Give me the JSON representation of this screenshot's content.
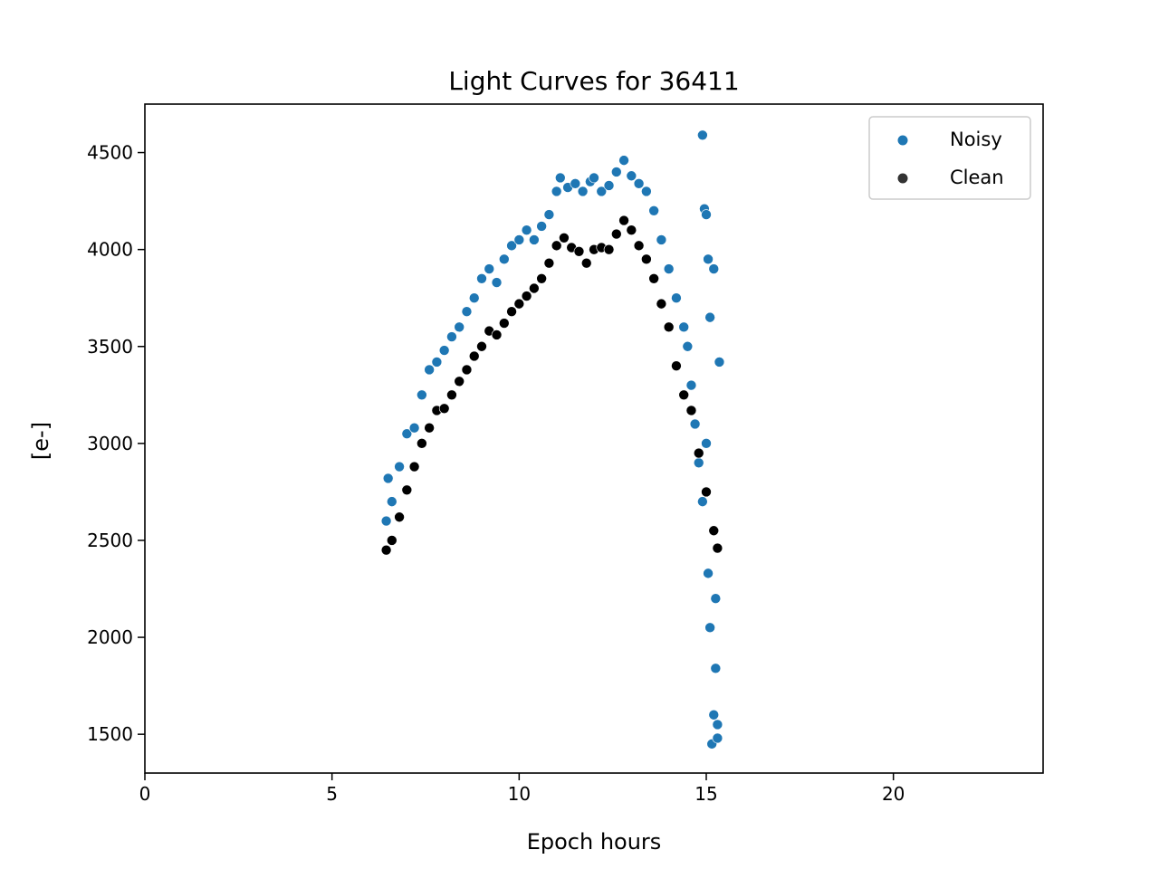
{
  "chart_data": {
    "type": "scatter",
    "title": "Light Curves for 36411",
    "xlabel": "Epoch hours",
    "ylabel": "[e-]",
    "xlim": [
      0,
      24
    ],
    "ylim": [
      1300,
      4750
    ],
    "xticks": [
      0,
      5,
      10,
      15,
      20
    ],
    "yticks": [
      1500,
      2000,
      2500,
      3000,
      3500,
      4000,
      4500
    ],
    "grid": false,
    "legend_position": "top-right",
    "series": [
      {
        "name": "Noisy",
        "color": "#1f77b4",
        "points": [
          [
            6.45,
            2600
          ],
          [
            6.5,
            2820
          ],
          [
            6.6,
            2700
          ],
          [
            6.8,
            2880
          ],
          [
            7.0,
            3050
          ],
          [
            7.2,
            3080
          ],
          [
            7.4,
            3250
          ],
          [
            7.6,
            3380
          ],
          [
            7.8,
            3420
          ],
          [
            8.0,
            3480
          ],
          [
            8.2,
            3550
          ],
          [
            8.4,
            3600
          ],
          [
            8.6,
            3680
          ],
          [
            8.8,
            3750
          ],
          [
            9.0,
            3850
          ],
          [
            9.2,
            3900
          ],
          [
            9.4,
            3830
          ],
          [
            9.6,
            3950
          ],
          [
            9.8,
            4020
          ],
          [
            10.0,
            4050
          ],
          [
            10.2,
            4100
          ],
          [
            10.4,
            4050
          ],
          [
            10.6,
            4120
          ],
          [
            10.8,
            4180
          ],
          [
            11.0,
            4300
          ],
          [
            11.1,
            4370
          ],
          [
            11.3,
            4320
          ],
          [
            11.5,
            4340
          ],
          [
            11.7,
            4300
          ],
          [
            11.9,
            4350
          ],
          [
            12.0,
            4370
          ],
          [
            12.2,
            4300
          ],
          [
            12.4,
            4330
          ],
          [
            12.6,
            4400
          ],
          [
            12.8,
            4460
          ],
          [
            13.0,
            4380
          ],
          [
            13.2,
            4340
          ],
          [
            13.4,
            4300
          ],
          [
            13.6,
            4200
          ],
          [
            13.8,
            4050
          ],
          [
            14.0,
            3900
          ],
          [
            14.2,
            3750
          ],
          [
            14.4,
            3600
          ],
          [
            14.5,
            3500
          ],
          [
            14.6,
            3300
          ],
          [
            14.7,
            3100
          ],
          [
            14.8,
            2900
          ],
          [
            14.9,
            4590
          ],
          [
            14.95,
            4210
          ],
          [
            15.0,
            4180
          ],
          [
            15.05,
            2330
          ],
          [
            15.1,
            2050
          ],
          [
            15.15,
            1450
          ],
          [
            15.2,
            1600
          ],
          [
            15.25,
            1840
          ],
          [
            15.3,
            1550
          ],
          [
            15.35,
            3420
          ],
          [
            15.2,
            3900
          ],
          [
            15.1,
            3650
          ],
          [
            15.0,
            3000
          ],
          [
            14.9,
            2700
          ],
          [
            15.25,
            2200
          ],
          [
            15.3,
            1480
          ],
          [
            15.05,
            3950
          ]
        ]
      },
      {
        "name": "Clean",
        "color": "#000000",
        "points": [
          [
            6.45,
            2450
          ],
          [
            6.6,
            2500
          ],
          [
            6.8,
            2620
          ],
          [
            7.0,
            2760
          ],
          [
            7.2,
            2880
          ],
          [
            7.4,
            3000
          ],
          [
            7.6,
            3080
          ],
          [
            7.8,
            3170
          ],
          [
            8.0,
            3180
          ],
          [
            8.2,
            3250
          ],
          [
            8.4,
            3320
          ],
          [
            8.6,
            3380
          ],
          [
            8.8,
            3450
          ],
          [
            9.0,
            3500
          ],
          [
            9.2,
            3580
          ],
          [
            9.4,
            3560
          ],
          [
            9.6,
            3620
          ],
          [
            9.8,
            3680
          ],
          [
            10.0,
            3720
          ],
          [
            10.2,
            3760
          ],
          [
            10.4,
            3800
          ],
          [
            10.6,
            3850
          ],
          [
            10.8,
            3930
          ],
          [
            11.0,
            4020
          ],
          [
            11.2,
            4060
          ],
          [
            11.4,
            4010
          ],
          [
            11.6,
            3990
          ],
          [
            11.8,
            3930
          ],
          [
            12.0,
            4000
          ],
          [
            12.2,
            4010
          ],
          [
            12.4,
            4000
          ],
          [
            12.6,
            4080
          ],
          [
            12.8,
            4150
          ],
          [
            13.0,
            4100
          ],
          [
            13.2,
            4020
          ],
          [
            13.4,
            3950
          ],
          [
            13.6,
            3850
          ],
          [
            13.8,
            3720
          ],
          [
            14.0,
            3600
          ],
          [
            14.2,
            3400
          ],
          [
            14.4,
            3250
          ],
          [
            14.6,
            3170
          ],
          [
            14.8,
            2950
          ],
          [
            15.0,
            2750
          ],
          [
            15.2,
            2550
          ],
          [
            15.3,
            2460
          ]
        ]
      }
    ]
  }
}
